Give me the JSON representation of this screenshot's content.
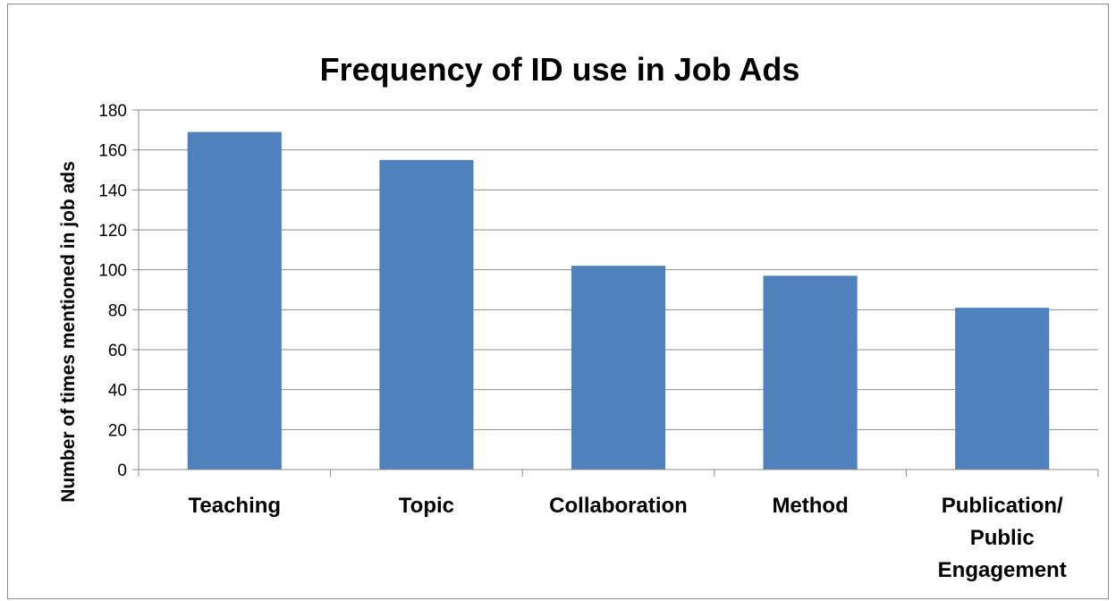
{
  "chart_data": {
    "type": "bar",
    "title": "Frequency of ID use in Job Ads",
    "ylabel": "Number of times mentioned in job ads",
    "xlabel": "",
    "categories": [
      "Teaching",
      "Topic",
      "Collaboration",
      "Method",
      "Publication/ Public Engagement"
    ],
    "category_label_lines": [
      [
        "Teaching"
      ],
      [
        "Topic"
      ],
      [
        "Collaboration"
      ],
      [
        "Method"
      ],
      [
        "Publication/",
        "Public",
        "Engagement"
      ]
    ],
    "values": [
      169,
      155,
      102,
      97,
      81
    ],
    "ylim": [
      0,
      180
    ],
    "yticks": [
      0,
      20,
      40,
      60,
      80,
      100,
      120,
      140,
      160,
      180
    ],
    "grid": true,
    "legend": "none",
    "bar_color": "#4f81bd"
  }
}
